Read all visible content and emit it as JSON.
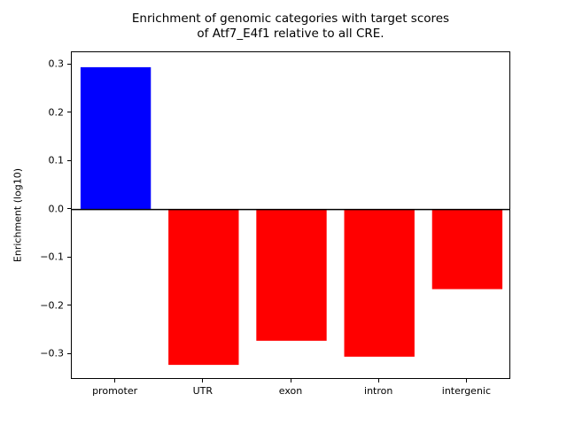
{
  "chart_data": {
    "type": "bar",
    "title": "Enrichment of genomic categories with target scores\nof Atf7_E4f1 relative to all CRE.",
    "title_line1": "Enrichment of genomic categories with target scores",
    "title_line2": "of Atf7_E4f1 relative to all CRE.",
    "xlabel": "",
    "ylabel": "Enrichment (log10)",
    "categories": [
      "promoter",
      "UTR",
      "exon",
      "intron",
      "intergenic"
    ],
    "values": [
      0.295,
      -0.322,
      -0.272,
      -0.305,
      -0.165
    ],
    "bar_colors": [
      "#0000ff",
      "#ff0000",
      "#ff0000",
      "#ff0000",
      "#ff0000"
    ],
    "positive_color": "#0000ff",
    "negative_color": "#ff0000",
    "ylim": [
      -0.353,
      0.326
    ],
    "yticks": [
      0.3,
      0.2,
      0.1,
      0.0,
      -0.1,
      -0.2,
      -0.3
    ],
    "ytick_labels": [
      "0.3",
      "0.2",
      "0.1",
      "0.0",
      "−0.1",
      "−0.2",
      "−0.3"
    ],
    "grid": false,
    "legend": false,
    "zero_line": true,
    "bar_width_fraction": 0.8,
    "background_color": "#ffffff"
  }
}
